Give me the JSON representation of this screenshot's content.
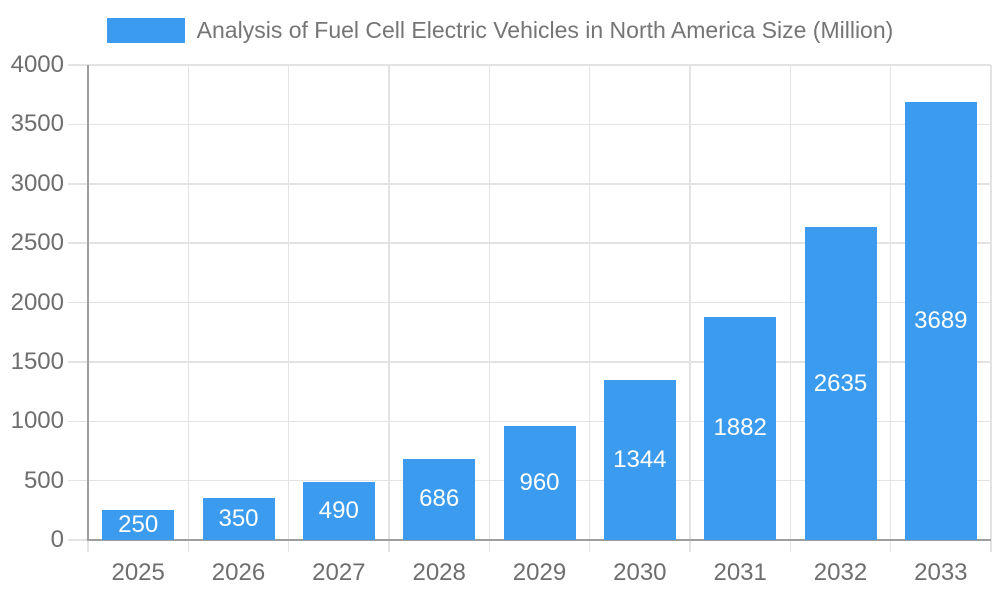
{
  "chart_data": {
    "type": "bar",
    "title": "Analysis of Fuel Cell Electric Vehicles in North America Size (Million)",
    "categories": [
      "2025",
      "2026",
      "2027",
      "2028",
      "2029",
      "2030",
      "2031",
      "2032",
      "2033"
    ],
    "values": [
      250,
      350,
      490,
      686,
      960,
      1344,
      1882,
      2635,
      3689
    ],
    "xlabel": "",
    "ylabel": "",
    "ylim": [
      0,
      4000
    ],
    "yticks": [
      0,
      500,
      1000,
      1500,
      2000,
      2500,
      3000,
      3500,
      4000
    ],
    "grid": true,
    "legend_position": "top",
    "colors": {
      "bar": "#3B9BEE",
      "grid": "#e3e3e3",
      "axis": "#9e9e9e",
      "text": "#6e6e6e",
      "bar_label": "#ffffff"
    }
  }
}
